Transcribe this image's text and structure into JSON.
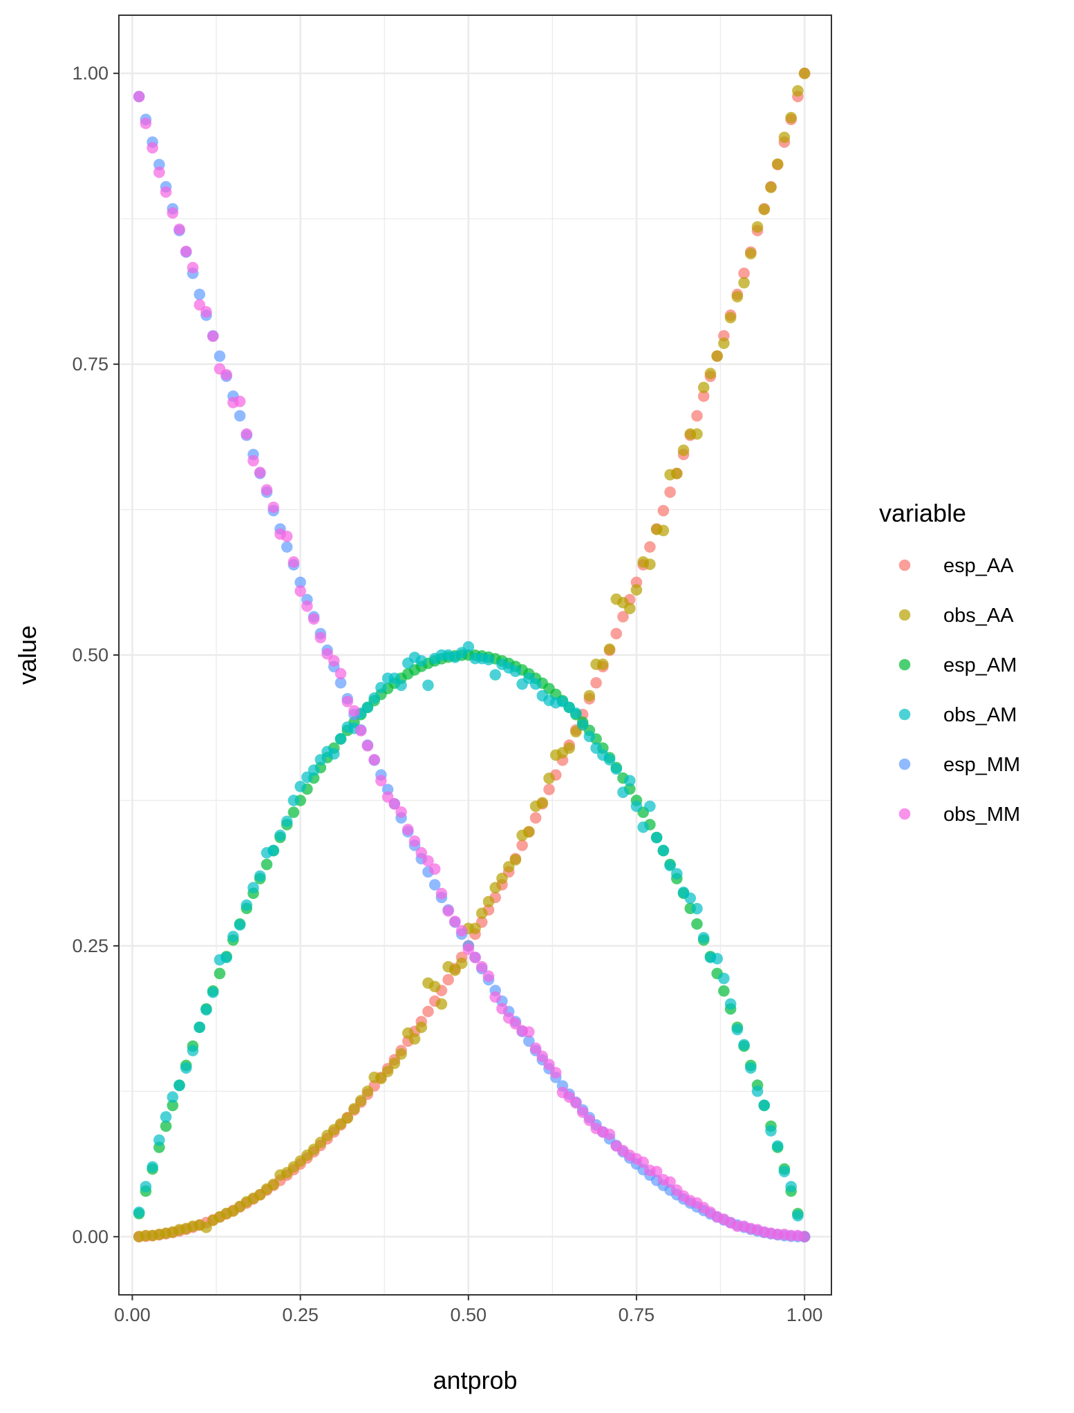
{
  "chart_data": {
    "type": "scatter",
    "title": "",
    "xlabel": "antprob",
    "ylabel": "value",
    "xlim": [
      -0.02,
      1.04
    ],
    "ylim": [
      -0.05,
      1.05
    ],
    "x_ticks": [
      "0.00",
      "0.25",
      "0.50",
      "0.75",
      "1.00"
    ],
    "y_ticks": [
      "0.00",
      "0.25",
      "0.50",
      "0.75",
      "1.00"
    ],
    "grid": true,
    "legend": {
      "title": "variable",
      "placement": "right"
    },
    "x": [
      0.01,
      0.02,
      0.03,
      0.04,
      0.05,
      0.06,
      0.07,
      0.08,
      0.09,
      0.1,
      0.11,
      0.12,
      0.13,
      0.14,
      0.15,
      0.16,
      0.17,
      0.18,
      0.19,
      0.2,
      0.21,
      0.22,
      0.23,
      0.24,
      0.25,
      0.26,
      0.27,
      0.28,
      0.29,
      0.3,
      0.31,
      0.32,
      0.33,
      0.34,
      0.35,
      0.36,
      0.37,
      0.38,
      0.39,
      0.4,
      0.41,
      0.42,
      0.43,
      0.44,
      0.45,
      0.46,
      0.47,
      0.48,
      0.49,
      0.5,
      0.51,
      0.52,
      0.53,
      0.54,
      0.55,
      0.56,
      0.57,
      0.58,
      0.59,
      0.6,
      0.61,
      0.62,
      0.63,
      0.64,
      0.65,
      0.66,
      0.67,
      0.68,
      0.69,
      0.7,
      0.71,
      0.72,
      0.73,
      0.74,
      0.75,
      0.76,
      0.77,
      0.78,
      0.79,
      0.8,
      0.81,
      0.82,
      0.83,
      0.84,
      0.85,
      0.86,
      0.87,
      0.88,
      0.89,
      0.9,
      0.91,
      0.92,
      0.93,
      0.94,
      0.95,
      0.96,
      0.97,
      0.98,
      0.99,
      1.0
    ],
    "series": [
      {
        "name": "esp_AA",
        "color": "#F8766D",
        "values": [
          0.0001,
          0.0004,
          0.0009,
          0.0016,
          0.0025,
          0.0036,
          0.0049,
          0.0064,
          0.0081,
          0.01,
          0.0121,
          0.0144,
          0.0169,
          0.0196,
          0.0225,
          0.0256,
          0.0289,
          0.0324,
          0.0361,
          0.04,
          0.0441,
          0.0484,
          0.0529,
          0.0576,
          0.0625,
          0.0676,
          0.0729,
          0.0784,
          0.0841,
          0.09,
          0.0961,
          0.1024,
          0.1089,
          0.1156,
          0.1225,
          0.1296,
          0.1369,
          0.1444,
          0.1521,
          0.16,
          0.1681,
          0.1764,
          0.1849,
          0.1936,
          0.2025,
          0.2116,
          0.2209,
          0.2304,
          0.2401,
          0.25,
          0.2601,
          0.2704,
          0.2809,
          0.2916,
          0.3025,
          0.3136,
          0.3249,
          0.3364,
          0.3481,
          0.36,
          0.3721,
          0.3844,
          0.3969,
          0.4096,
          0.4225,
          0.4356,
          0.4489,
          0.4624,
          0.4761,
          0.49,
          0.5041,
          0.5184,
          0.5329,
          0.5476,
          0.5625,
          0.5776,
          0.5929,
          0.6084,
          0.6241,
          0.64,
          0.6561,
          0.6724,
          0.6889,
          0.7056,
          0.7225,
          0.7396,
          0.7569,
          0.7744,
          0.7921,
          0.81,
          0.8281,
          0.8464,
          0.8649,
          0.8836,
          0.9025,
          0.9216,
          0.9409,
          0.9604,
          0.9801,
          1.0
        ]
      },
      {
        "name": "obs_AA",
        "color": "#B79F00",
        "values": [
          0.0,
          0.001,
          0.001,
          0.002,
          0.003,
          0.004,
          0.006,
          0.007,
          0.009,
          0.01,
          0.008,
          0.014,
          0.017,
          0.02,
          0.022,
          0.026,
          0.03,
          0.033,
          0.036,
          0.041,
          0.045,
          0.053,
          0.055,
          0.06,
          0.065,
          0.07,
          0.075,
          0.081,
          0.087,
          0.092,
          0.097,
          0.102,
          0.11,
          0.117,
          0.125,
          0.137,
          0.136,
          0.142,
          0.149,
          0.157,
          0.175,
          0.17,
          0.18,
          0.218,
          0.215,
          0.2,
          0.232,
          0.229,
          0.235,
          0.265,
          0.265,
          0.278,
          0.288,
          0.3,
          0.308,
          0.318,
          0.324,
          0.345,
          0.348,
          0.37,
          0.373,
          0.394,
          0.414,
          0.416,
          0.42,
          0.434,
          0.44,
          0.465,
          0.492,
          0.492,
          0.505,
          0.548,
          0.545,
          0.54,
          0.556,
          0.58,
          0.578,
          0.608,
          0.607,
          0.655,
          0.656,
          0.676,
          0.69,
          0.69,
          0.73,
          0.742,
          0.757,
          0.768,
          0.79,
          0.808,
          0.82,
          0.845,
          0.868,
          0.883,
          0.902,
          0.922,
          0.945,
          0.962,
          0.985,
          1.0
        ]
      },
      {
        "name": "esp_AM",
        "color": "#00BA38",
        "values": [
          0.0198,
          0.0392,
          0.0582,
          0.0768,
          0.095,
          0.1128,
          0.1302,
          0.1472,
          0.1638,
          0.18,
          0.1958,
          0.2112,
          0.2262,
          0.2408,
          0.255,
          0.2688,
          0.2822,
          0.2952,
          0.3078,
          0.32,
          0.3318,
          0.3432,
          0.3542,
          0.3648,
          0.375,
          0.3848,
          0.3942,
          0.4032,
          0.4118,
          0.42,
          0.4278,
          0.4352,
          0.4422,
          0.4488,
          0.455,
          0.4608,
          0.4662,
          0.4712,
          0.4758,
          0.48,
          0.4838,
          0.4872,
          0.4902,
          0.4928,
          0.495,
          0.4968,
          0.4982,
          0.4992,
          0.4998,
          0.5,
          0.4998,
          0.4992,
          0.4982,
          0.4968,
          0.495,
          0.4928,
          0.4902,
          0.4872,
          0.4838,
          0.48,
          0.4758,
          0.4712,
          0.4662,
          0.4608,
          0.455,
          0.4488,
          0.4422,
          0.4352,
          0.4278,
          0.42,
          0.4118,
          0.4032,
          0.3942,
          0.3848,
          0.375,
          0.3648,
          0.3542,
          0.3432,
          0.3318,
          0.32,
          0.3078,
          0.2952,
          0.2822,
          0.2688,
          0.255,
          0.2408,
          0.2262,
          0.2112,
          0.1958,
          0.18,
          0.1638,
          0.1472,
          0.1302,
          0.1128,
          0.095,
          0.0768,
          0.0582,
          0.0392,
          0.0198,
          0.0
        ]
      },
      {
        "name": "obs_AM",
        "color": "#00BFC4",
        "values": [
          0.021,
          0.043,
          0.06,
          0.083,
          0.103,
          0.12,
          0.13,
          0.145,
          0.16,
          0.18,
          0.195,
          0.21,
          0.238,
          0.24,
          0.258,
          0.268,
          0.285,
          0.3,
          0.31,
          0.33,
          0.332,
          0.345,
          0.357,
          0.375,
          0.387,
          0.395,
          0.401,
          0.41,
          0.417,
          0.415,
          0.428,
          0.438,
          0.437,
          0.45,
          0.455,
          0.463,
          0.472,
          0.48,
          0.48,
          0.474,
          0.493,
          0.498,
          0.495,
          0.474,
          0.497,
          0.5,
          0.5,
          0.498,
          0.502,
          0.507,
          0.497,
          0.497,
          0.496,
          0.483,
          0.492,
          0.489,
          0.486,
          0.475,
          0.48,
          0.475,
          0.465,
          0.461,
          0.459,
          0.46,
          0.455,
          0.45,
          0.44,
          0.43,
          0.42,
          0.414,
          0.41,
          0.402,
          0.382,
          0.392,
          0.37,
          0.352,
          0.37,
          0.343,
          0.332,
          0.319,
          0.312,
          0.296,
          0.291,
          0.282,
          0.257,
          0.24,
          0.239,
          0.222,
          0.2,
          0.178,
          0.165,
          0.145,
          0.125,
          0.113,
          0.091,
          0.078,
          0.056,
          0.043,
          0.018,
          0.0
        ]
      },
      {
        "name": "esp_MM",
        "color": "#619CFF",
        "values": [
          0.9801,
          0.9604,
          0.9409,
          0.9216,
          0.9025,
          0.8836,
          0.8649,
          0.8464,
          0.8281,
          0.81,
          0.7921,
          0.7744,
          0.7569,
          0.7396,
          0.7225,
          0.7056,
          0.6889,
          0.6724,
          0.6561,
          0.64,
          0.6241,
          0.6084,
          0.5929,
          0.5776,
          0.5625,
          0.5476,
          0.5329,
          0.5184,
          0.5041,
          0.49,
          0.4761,
          0.4624,
          0.4489,
          0.4356,
          0.4225,
          0.4096,
          0.3969,
          0.3844,
          0.3721,
          0.36,
          0.3481,
          0.3364,
          0.3249,
          0.3136,
          0.3025,
          0.2916,
          0.2809,
          0.2704,
          0.2601,
          0.25,
          0.2401,
          0.2304,
          0.2209,
          0.2116,
          0.2025,
          0.1936,
          0.1849,
          0.1764,
          0.1681,
          0.16,
          0.1521,
          0.1444,
          0.1369,
          0.1296,
          0.1225,
          0.1156,
          0.1089,
          0.1024,
          0.0961,
          0.09,
          0.0841,
          0.0784,
          0.0729,
          0.0676,
          0.0625,
          0.0576,
          0.0529,
          0.0484,
          0.0441,
          0.04,
          0.0361,
          0.0324,
          0.0289,
          0.0256,
          0.0225,
          0.0196,
          0.0169,
          0.0144,
          0.0121,
          0.01,
          0.0081,
          0.0064,
          0.0049,
          0.0036,
          0.0025,
          0.0016,
          0.0009,
          0.0004,
          0.0001,
          0.0
        ]
      },
      {
        "name": "obs_MM",
        "color": "#F564E3",
        "values": [
          0.98,
          0.957,
          0.936,
          0.915,
          0.898,
          0.88,
          0.866,
          0.847,
          0.833,
          0.801,
          0.795,
          0.774,
          0.746,
          0.741,
          0.717,
          0.718,
          0.69,
          0.667,
          0.657,
          0.642,
          0.627,
          0.604,
          0.602,
          0.58,
          0.555,
          0.542,
          0.531,
          0.515,
          0.501,
          0.495,
          0.484,
          0.46,
          0.452,
          0.435,
          0.422,
          0.41,
          0.392,
          0.378,
          0.372,
          0.365,
          0.35,
          0.34,
          0.33,
          0.323,
          0.316,
          0.295,
          0.28,
          0.271,
          0.263,
          0.247,
          0.24,
          0.232,
          0.224,
          0.206,
          0.196,
          0.188,
          0.183,
          0.177,
          0.176,
          0.162,
          0.155,
          0.148,
          0.141,
          0.124,
          0.12,
          0.115,
          0.107,
          0.1,
          0.093,
          0.09,
          0.088,
          0.078,
          0.074,
          0.07,
          0.067,
          0.064,
          0.057,
          0.056,
          0.049,
          0.047,
          0.04,
          0.035,
          0.031,
          0.029,
          0.025,
          0.021,
          0.017,
          0.015,
          0.012,
          0.009,
          0.009,
          0.007,
          0.006,
          0.004,
          0.003,
          0.002,
          0.002,
          0.001,
          0.001,
          0.0
        ]
      }
    ]
  }
}
